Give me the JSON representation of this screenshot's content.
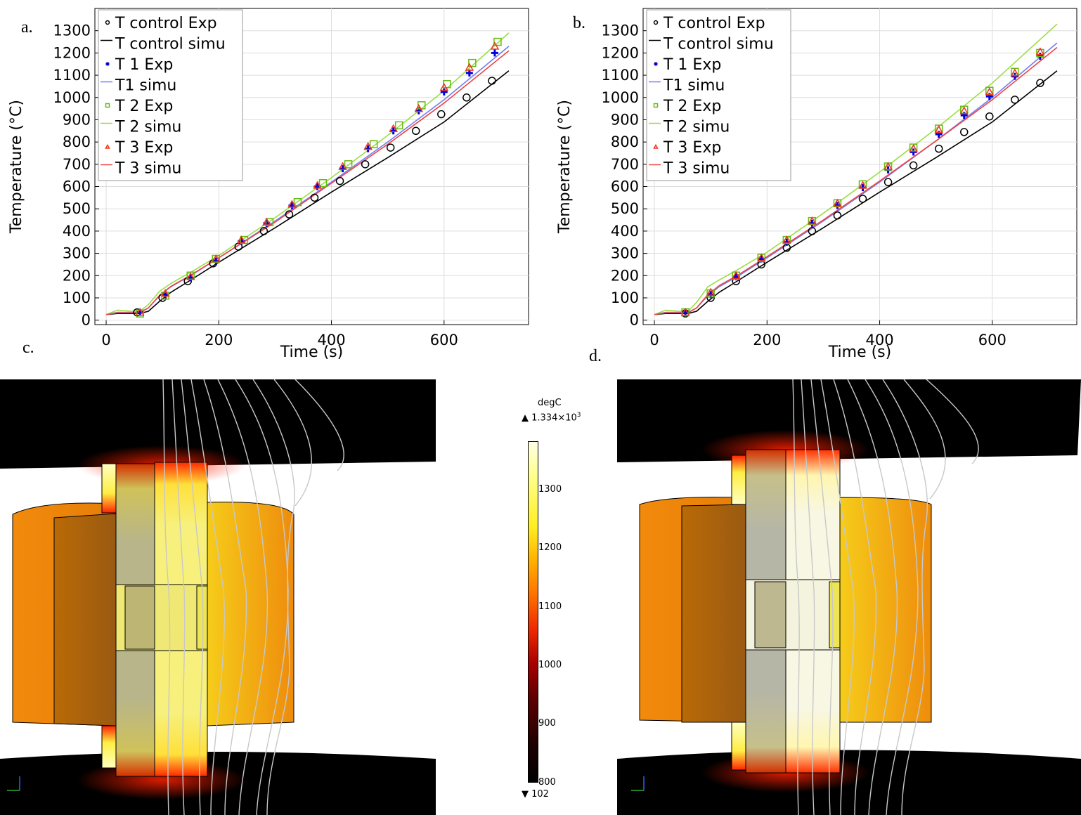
{
  "labels": {
    "a": "a.",
    "b": "b.",
    "c": "c.",
    "d": "d."
  },
  "chart_data": [
    {
      "panel": "a",
      "type": "line",
      "xlabel": "Time (s)",
      "ylabel": "Temperature (°C)",
      "xlim": [
        -20,
        750
      ],
      "ylim": [
        -20,
        1400
      ],
      "xticks": [
        0,
        200,
        400,
        600
      ],
      "yticks": [
        0,
        100,
        200,
        300,
        400,
        500,
        600,
        700,
        800,
        900,
        1000,
        1100,
        1200,
        1300
      ],
      "grid": true,
      "legend": "top-left",
      "series": [
        {
          "name": "T control Exp",
          "kind": "scatter",
          "marker": "circle",
          "color": "#000000",
          "x": [
            55,
            100,
            145,
            190,
            235,
            280,
            325,
            370,
            415,
            460,
            505,
            550,
            595,
            640,
            685
          ],
          "y": [
            35,
            100,
            175,
            255,
            330,
            400,
            475,
            550,
            625,
            700,
            775,
            850,
            925,
            1000,
            1075
          ]
        },
        {
          "name": "T control simu",
          "kind": "line",
          "color": "#000000",
          "x": [
            0,
            20,
            45,
            60,
            75,
            95,
            115,
            150,
            200,
            300,
            400,
            500,
            600,
            715
          ],
          "y": [
            25,
            30,
            30,
            30,
            40,
            85,
            125,
            180,
            260,
            415,
            575,
            730,
            890,
            1120
          ]
        },
        {
          "name": "T 1 Exp",
          "kind": "scatter",
          "marker": "plus",
          "color": "#0000dd",
          "x": [
            60,
            105,
            150,
            195,
            240,
            285,
            330,
            375,
            420,
            465,
            510,
            555,
            600,
            645,
            690
          ],
          "y": [
            35,
            115,
            190,
            265,
            355,
            435,
            515,
            600,
            680,
            770,
            850,
            940,
            1025,
            1110,
            1200
          ]
        },
        {
          "name": "T1 simu",
          "kind": "line",
          "color": "#6f7ff2",
          "x": [
            0,
            20,
            45,
            60,
            75,
            95,
            115,
            150,
            200,
            300,
            400,
            500,
            600,
            715
          ],
          "y": [
            25,
            35,
            35,
            35,
            55,
            110,
            150,
            200,
            280,
            445,
            620,
            800,
            990,
            1230
          ]
        },
        {
          "name": "T 2 Exp",
          "kind": "scatter",
          "marker": "square",
          "color": "#66bb11",
          "x": [
            60,
            105,
            150,
            195,
            245,
            290,
            340,
            385,
            430,
            475,
            520,
            560,
            605,
            650,
            695
          ],
          "y": [
            30,
            110,
            200,
            275,
            360,
            440,
            530,
            615,
            700,
            790,
            875,
            965,
            1060,
            1155,
            1250
          ]
        },
        {
          "name": "T 2 simu",
          "kind": "line",
          "color": "#99dd44",
          "x": [
            0,
            20,
            45,
            60,
            75,
            95,
            115,
            150,
            200,
            300,
            400,
            500,
            600,
            715
          ],
          "y": [
            25,
            45,
            40,
            40,
            70,
            130,
            165,
            215,
            290,
            460,
            640,
            830,
            1030,
            1290
          ]
        },
        {
          "name": "T 3 Exp",
          "kind": "scatter",
          "marker": "triangle",
          "color": "#ee3322",
          "x": [
            60,
            105,
            150,
            195,
            240,
            285,
            330,
            375,
            420,
            465,
            510,
            555,
            600,
            645,
            690
          ],
          "y": [
            35,
            120,
            195,
            275,
            360,
            440,
            520,
            605,
            690,
            780,
            860,
            950,
            1045,
            1135,
            1230
          ]
        },
        {
          "name": "T 3 simu",
          "kind": "line",
          "color": "#ee4444",
          "x": [
            0,
            20,
            45,
            60,
            75,
            95,
            115,
            150,
            200,
            300,
            400,
            500,
            600,
            715
          ],
          "y": [
            25,
            33,
            33,
            33,
            55,
            112,
            152,
            202,
            280,
            440,
            615,
            790,
            975,
            1210
          ]
        }
      ]
    },
    {
      "panel": "b",
      "type": "line",
      "xlabel": "Time (s)",
      "ylabel": "Temperature (°C)",
      "xlim": [
        -20,
        750
      ],
      "ylim": [
        -20,
        1400
      ],
      "xticks": [
        0,
        200,
        400,
        600
      ],
      "yticks": [
        0,
        100,
        200,
        300,
        400,
        500,
        600,
        700,
        800,
        900,
        1000,
        1100,
        1200,
        1300
      ],
      "grid": true,
      "legend": "top-left",
      "series": [
        {
          "name": "T control Exp",
          "kind": "scatter",
          "marker": "circle",
          "color": "#000000",
          "x": [
            55,
            100,
            145,
            190,
            235,
            280,
            325,
            370,
            415,
            460,
            505,
            550,
            595,
            640,
            685
          ],
          "y": [
            30,
            100,
            175,
            250,
            325,
            400,
            470,
            545,
            620,
            695,
            770,
            845,
            915,
            990,
            1065
          ]
        },
        {
          "name": "T control simu",
          "kind": "line",
          "color": "#000000",
          "x": [
            0,
            20,
            45,
            60,
            75,
            95,
            115,
            150,
            200,
            300,
            400,
            500,
            600,
            715
          ],
          "y": [
            25,
            30,
            30,
            30,
            40,
            85,
            125,
            180,
            260,
            415,
            575,
            730,
            890,
            1120
          ]
        },
        {
          "name": "T 1 Exp",
          "kind": "scatter",
          "marker": "plus",
          "color": "#0000dd",
          "x": [
            55,
            100,
            145,
            190,
            235,
            280,
            325,
            370,
            415,
            460,
            505,
            550,
            595,
            640,
            685
          ],
          "y": [
            35,
            115,
            195,
            275,
            350,
            435,
            515,
            595,
            675,
            755,
            835,
            920,
            1005,
            1095,
            1185
          ]
        },
        {
          "name": "T1 simu",
          "kind": "line",
          "color": "#6f7ff2",
          "x": [
            0,
            20,
            45,
            60,
            75,
            95,
            115,
            150,
            200,
            300,
            400,
            500,
            600,
            715
          ],
          "y": [
            25,
            35,
            35,
            35,
            55,
            110,
            150,
            200,
            280,
            445,
            620,
            805,
            1000,
            1245
          ]
        },
        {
          "name": "T 2 Exp",
          "kind": "scatter",
          "marker": "square",
          "color": "#66bb11",
          "x": [
            55,
            100,
            145,
            190,
            235,
            280,
            325,
            370,
            415,
            460,
            505,
            550,
            595,
            640,
            685
          ],
          "y": [
            35,
            120,
            200,
            280,
            360,
            445,
            525,
            610,
            690,
            775,
            860,
            945,
            1030,
            1115,
            1200
          ]
        },
        {
          "name": "T 2 simu",
          "kind": "line",
          "color": "#99dd44",
          "x": [
            0,
            20,
            45,
            60,
            75,
            95,
            115,
            150,
            200,
            300,
            400,
            500,
            600,
            715
          ],
          "y": [
            25,
            45,
            40,
            40,
            80,
            150,
            180,
            230,
            305,
            480,
            665,
            860,
            1065,
            1330
          ]
        },
        {
          "name": "T 3 Exp",
          "kind": "scatter",
          "marker": "triangle",
          "color": "#ee3322",
          "x": [
            55,
            100,
            145,
            190,
            235,
            280,
            325,
            370,
            415,
            460,
            505,
            550,
            595,
            640,
            685
          ],
          "y": [
            35,
            125,
            200,
            280,
            360,
            445,
            525,
            605,
            690,
            770,
            855,
            940,
            1025,
            1110,
            1205
          ]
        },
        {
          "name": "T 3 simu",
          "kind": "line",
          "color": "#ee4444",
          "x": [
            0,
            20,
            45,
            60,
            75,
            95,
            115,
            150,
            200,
            300,
            400,
            500,
            600,
            715
          ],
          "y": [
            25,
            33,
            33,
            33,
            55,
            115,
            155,
            205,
            285,
            450,
            625,
            805,
            990,
            1225
          ]
        }
      ]
    }
  ],
  "colorbar": {
    "unit": "degC",
    "max_prefix": "▲ 1.334×10",
    "max_exp": "3",
    "min_label": "▼ 102",
    "ticks": [
      "1300",
      "1200",
      "1100",
      "1000",
      "900",
      "800"
    ]
  }
}
